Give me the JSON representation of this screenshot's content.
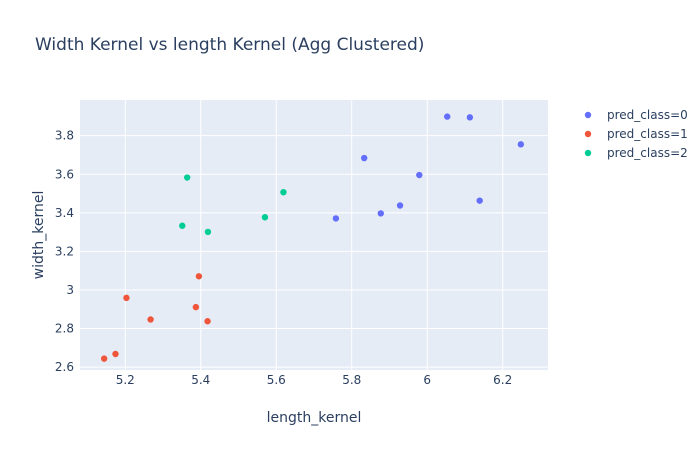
{
  "chart_data": {
    "type": "scatter",
    "title": "Width Kernel vs length Kernel (Agg Clustered)",
    "xlabel": "length_kernel",
    "ylabel": "width_kernel",
    "xlim": [
      5.08,
      6.32
    ],
    "ylim": [
      2.585,
      3.985
    ],
    "xticks": [
      {
        "value": 5.2,
        "label": "5.2"
      },
      {
        "value": 5.4,
        "label": "5.4"
      },
      {
        "value": 5.6,
        "label": "5.6"
      },
      {
        "value": 5.8,
        "label": "5.8"
      },
      {
        "value": 6.0,
        "label": "6"
      },
      {
        "value": 6.2,
        "label": "6.2"
      }
    ],
    "yticks": [
      {
        "value": 2.6,
        "label": "2.6"
      },
      {
        "value": 2.8,
        "label": "2.8"
      },
      {
        "value": 3.0,
        "label": "3"
      },
      {
        "value": 3.2,
        "label": "3.2"
      },
      {
        "value": 3.4,
        "label": "3.4"
      },
      {
        "value": 3.6,
        "label": "3.6"
      },
      {
        "value": 3.8,
        "label": "3.8"
      }
    ],
    "grid": true,
    "legend_position": "right",
    "series": [
      {
        "name": "pred_class=0",
        "color": "#636efa",
        "points": [
          {
            "x": 6.053,
            "y": 3.899
          },
          {
            "x": 6.113,
            "y": 3.895
          },
          {
            "x": 6.248,
            "y": 3.755
          },
          {
            "x": 5.833,
            "y": 3.684
          },
          {
            "x": 5.979,
            "y": 3.596
          },
          {
            "x": 6.139,
            "y": 3.463
          },
          {
            "x": 5.928,
            "y": 3.438
          },
          {
            "x": 5.877,
            "y": 3.397
          },
          {
            "x": 5.758,
            "y": 3.371
          }
        ]
      },
      {
        "name": "pred_class=1",
        "color": "#ef553b",
        "points": [
          {
            "x": 5.395,
            "y": 3.071
          },
          {
            "x": 5.203,
            "y": 2.959
          },
          {
            "x": 5.387,
            "y": 2.911
          },
          {
            "x": 5.267,
            "y": 2.847
          },
          {
            "x": 5.418,
            "y": 2.838
          },
          {
            "x": 5.174,
            "y": 2.668
          },
          {
            "x": 5.144,
            "y": 2.644
          }
        ]
      },
      {
        "name": "pred_class=2",
        "color": "#00cc96",
        "points": [
          {
            "x": 5.364,
            "y": 3.583
          },
          {
            "x": 5.619,
            "y": 3.507
          },
          {
            "x": 5.57,
            "y": 3.377
          },
          {
            "x": 5.351,
            "y": 3.333
          },
          {
            "x": 5.419,
            "y": 3.301
          }
        ]
      }
    ]
  }
}
